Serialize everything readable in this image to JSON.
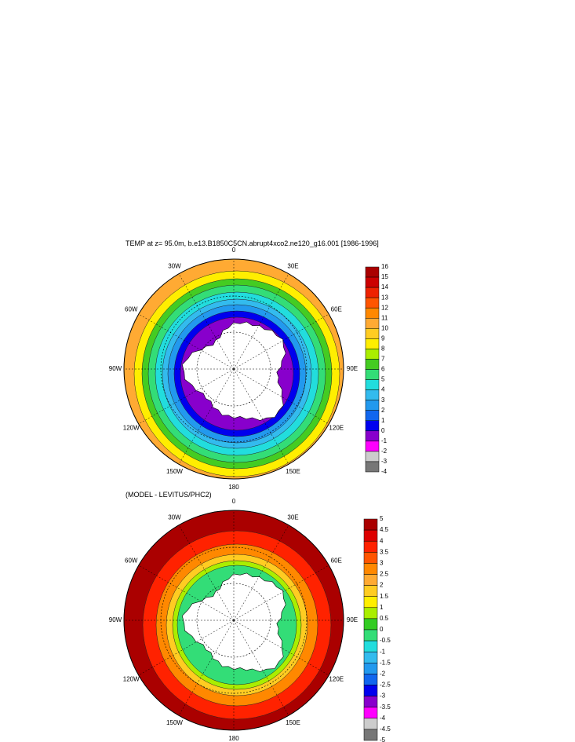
{
  "maps": [
    {
      "title": "TEMP at z=  95.0m, b.e13.B1850C5CN.abrupt4xco2.ne120_g16.001 [1986-1996]",
      "longitude_labels": [
        "0",
        "30E",
        "60E",
        "90E",
        "120E",
        "150E",
        "180",
        "150W",
        "120W",
        "90W",
        "60W",
        "30W"
      ],
      "colorbar": {
        "levels": [
          16,
          15,
          14,
          13,
          12,
          11,
          10,
          9,
          8,
          7,
          6,
          5,
          4,
          3,
          2,
          1,
          0,
          -1,
          -2,
          -3,
          -4
        ],
        "colors": [
          "#aa0000",
          "#cc0000",
          "#ee2200",
          "#ff5500",
          "#ff8800",
          "#ffaa33",
          "#ffcc22",
          "#ffee00",
          "#aaee00",
          "#44cc22",
          "#33dd77",
          "#22dddd",
          "#33bbee",
          "#2299ee",
          "#1166ee",
          "#0000ee",
          "#8800cc",
          "#ff00ff",
          "#cccccc",
          "#777777"
        ]
      }
    },
    {
      "title": "(MODEL - LEVITUS/PHC2)",
      "longitude_labels": [
        "0",
        "30E",
        "60E",
        "90E",
        "120E",
        "150E",
        "180",
        "150W",
        "120W",
        "90W",
        "60W",
        "30W"
      ],
      "colorbar": {
        "levels": [
          5,
          4.5,
          4,
          3.5,
          3,
          2.5,
          2,
          1.5,
          1,
          0.5,
          0,
          -0.5,
          -1,
          -1.5,
          -2,
          -2.5,
          -3,
          -3.5,
          -4,
          -4.5,
          -5
        ],
        "colors": [
          "#aa0000",
          "#dd0000",
          "#ff2200",
          "#ff5500",
          "#ff8800",
          "#ffaa33",
          "#ffcc22",
          "#ffee00",
          "#aaee00",
          "#33cc22",
          "#33dd77",
          "#22dddd",
          "#33bbee",
          "#2299ee",
          "#1166ee",
          "#0000ee",
          "#8800cc",
          "#ff00ff",
          "#cccccc",
          "#777777"
        ]
      }
    }
  ]
}
